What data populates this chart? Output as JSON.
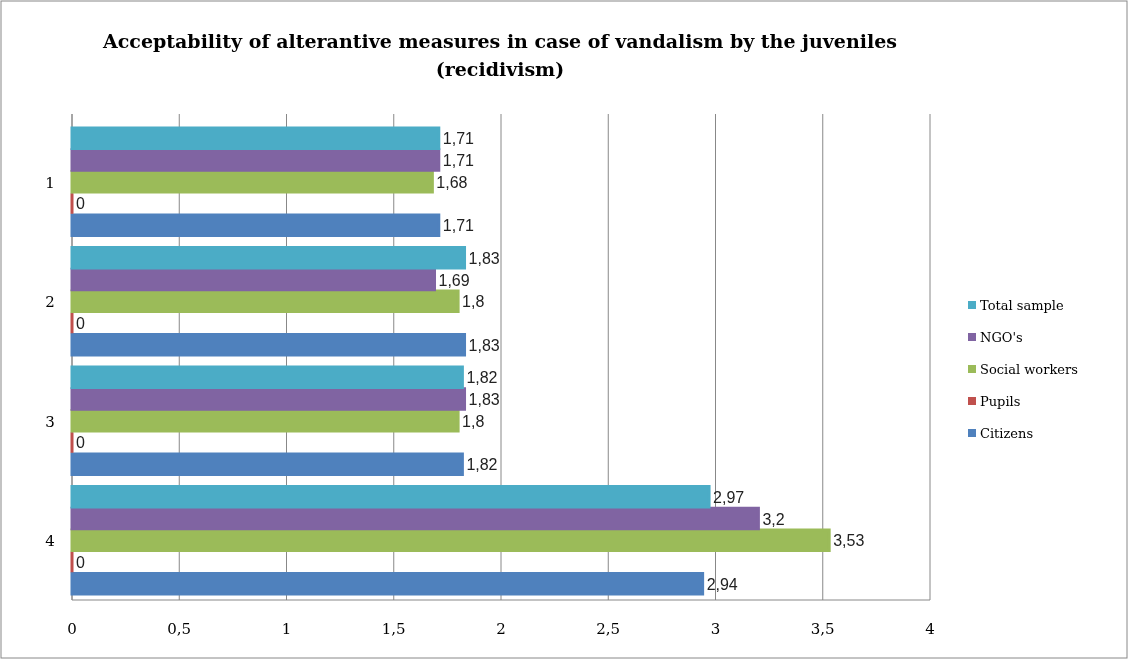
{
  "chart_data": {
    "type": "bar",
    "orientation": "horizontal",
    "title": "Acceptability of alterantive measures in case of vandalism by the juveniles (recidivism)",
    "categories": [
      "1",
      "2",
      "3",
      "4"
    ],
    "series": [
      {
        "name": "Citizens",
        "color": "#4f81bd",
        "values": [
          1.71,
          1.83,
          1.82,
          2.94
        ],
        "value_labels": [
          "1,71",
          "1,83",
          "1,82",
          "2,94"
        ]
      },
      {
        "name": "Pupils",
        "color": "#c0504d",
        "values": [
          0,
          0,
          0,
          0
        ],
        "value_labels": [
          "0",
          "0",
          "0",
          "0"
        ]
      },
      {
        "name": "Social workers",
        "color": "#9bbb59",
        "values": [
          1.68,
          1.8,
          1.8,
          3.53
        ],
        "value_labels": [
          "1,68",
          "1,8",
          "1,8",
          "3,53"
        ]
      },
      {
        "name": "NGO's",
        "color": "#8064a2",
        "values": [
          1.71,
          1.69,
          1.83,
          3.2
        ],
        "value_labels": [
          "1,71",
          "1,69",
          "1,83",
          "3,2"
        ]
      },
      {
        "name": "Total sample",
        "color": "#4bacc6",
        "values": [
          1.71,
          1.83,
          1.82,
          2.97
        ],
        "value_labels": [
          "1,71",
          "1,83",
          "1,82",
          "2,97"
        ]
      }
    ],
    "xlim": [
      0,
      4
    ],
    "xticks": [
      0,
      {
        "value": 0.5,
        "label": "0,5"
      },
      1,
      {
        "value": 1.5,
        "label": "1,5"
      },
      2,
      {
        "value": 2.5,
        "label": "2,5"
      },
      3,
      {
        "value": 3.5,
        "label": "3,5"
      },
      4
    ],
    "grid": "x",
    "legend": "right"
  }
}
